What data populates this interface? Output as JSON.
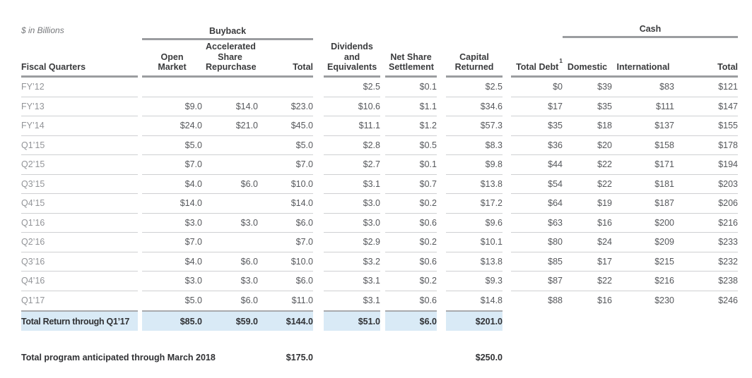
{
  "chart_data": {
    "type": "table",
    "title": "$ in Billions",
    "column_groups": [
      {
        "label": "Buyback",
        "columns": [
          "Open Market",
          "Accelerated Share Repurchase",
          "Total"
        ]
      },
      {
        "label": "Cash",
        "columns": [
          "Domestic",
          "International",
          "Total"
        ]
      }
    ],
    "columns": [
      "Fiscal Quarters",
      "Open Market",
      "Accelerated Share Repurchase",
      "Total",
      "Dividends and Equivalents",
      "Net Share Settlement",
      "Capital Returned",
      "Total Debt",
      "Domestic",
      "International",
      "Total"
    ],
    "rows": [
      [
        "FY’12",
        "",
        "",
        "",
        "$2.5",
        "$0.1",
        "$2.5",
        "$0",
        "$39",
        "$83",
        "$121"
      ],
      [
        "FY’13",
        "$9.0",
        "$14.0",
        "$23.0",
        "$10.6",
        "$1.1",
        "$34.6",
        "$17",
        "$35",
        "$111",
        "$147"
      ],
      [
        "FY’14",
        "$24.0",
        "$21.0",
        "$45.0",
        "$11.1",
        "$1.2",
        "$57.3",
        "$35",
        "$18",
        "$137",
        "$155"
      ],
      [
        "Q1’15",
        "$5.0",
        "",
        "$5.0",
        "$2.8",
        "$0.5",
        "$8.3",
        "$36",
        "$20",
        "$158",
        "$178"
      ],
      [
        "Q2’15",
        "$7.0",
        "",
        "$7.0",
        "$2.7",
        "$0.1",
        "$9.8",
        "$44",
        "$22",
        "$171",
        "$194"
      ],
      [
        "Q3’15",
        "$4.0",
        "$6.0",
        "$10.0",
        "$3.1",
        "$0.7",
        "$13.8",
        "$54",
        "$22",
        "$181",
        "$203"
      ],
      [
        "Q4’15",
        "$14.0",
        "",
        "$14.0",
        "$3.0",
        "$0.2",
        "$17.2",
        "$64",
        "$19",
        "$187",
        "$206"
      ],
      [
        "Q1’16",
        "$3.0",
        "$3.0",
        "$6.0",
        "$3.0",
        "$0.6",
        "$9.6",
        "$63",
        "$16",
        "$200",
        "$216"
      ],
      [
        "Q2’16",
        "$7.0",
        "",
        "$7.0",
        "$2.9",
        "$0.2",
        "$10.1",
        "$80",
        "$24",
        "$209",
        "$233"
      ],
      [
        "Q3’16",
        "$4.0",
        "$6.0",
        "$10.0",
        "$3.2",
        "$0.6",
        "$13.8",
        "$85",
        "$17",
        "$215",
        "$232"
      ],
      [
        "Q4’16",
        "$3.0",
        "$3.0",
        "$6.0",
        "$3.1",
        "$0.2",
        "$9.3",
        "$87",
        "$22",
        "$216",
        "$238"
      ],
      [
        "Q1’17",
        "$5.0",
        "$6.0",
        "$11.0",
        "$3.1",
        "$0.6",
        "$14.8",
        "$88",
        "$16",
        "$230",
        "$246"
      ]
    ],
    "total_row": [
      "Total Return through Q1’17",
      "$85.0",
      "$59.0",
      "$144.0",
      "$51.0",
      "$6.0",
      "$201.0",
      "",
      "",
      "",
      ""
    ],
    "footer_row": {
      "label": "Total program anticipated through March 2018",
      "buyback_total": "$175.0",
      "capital_returned": "$250.0"
    },
    "layout": {
      "grid": false,
      "highlight_row": "Total Return through Q1’17"
    }
  },
  "footnotes": {
    "total_debt_marker": "1"
  },
  "colors": {
    "highlight_row_bg": "#d9eaf6",
    "heavy_rule": "#9b9da0",
    "light_rule": "#cfd0d2",
    "total_top_rule": "#a8aaad",
    "header_text": "#3a3b3d",
    "value_text": "#56585c",
    "row_label_text": "#929498",
    "note_text": "#75777a"
  }
}
